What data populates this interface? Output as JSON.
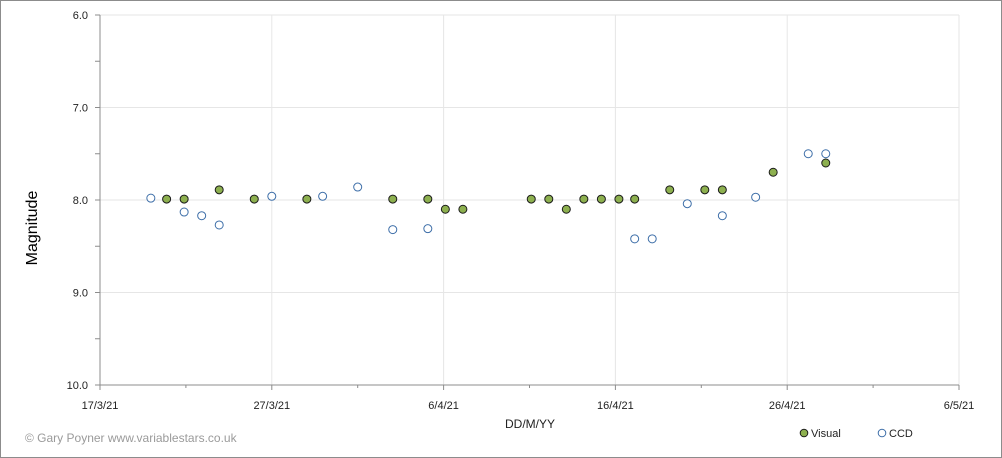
{
  "chart_data": {
    "type": "scatter",
    "title": "",
    "xlabel": "DD/M/YY",
    "ylabel": "Magnitude",
    "x_unit": "days since 17/3/21",
    "xlim": [
      0,
      49
    ],
    "ylim": [
      6.0,
      10.0
    ],
    "y_inverted": true,
    "grid": true,
    "legend_position": "bottom-right",
    "x_ticks": [
      {
        "day": 0,
        "label": "17/3/21"
      },
      {
        "day": 9.8,
        "label": "27/3/21"
      },
      {
        "day": 19.6,
        "label": "6/4/21"
      },
      {
        "day": 29.4,
        "label": "16/4/21"
      },
      {
        "day": 39.2,
        "label": "26/4/21"
      },
      {
        "day": 49,
        "label": "6/5/21"
      }
    ],
    "y_ticks": [
      {
        "value": 6.0,
        "label": "6.0"
      },
      {
        "value": 7.0,
        "label": "7.0"
      },
      {
        "value": 8.0,
        "label": "8.0"
      },
      {
        "value": 9.0,
        "label": "9.0"
      },
      {
        "value": 10.0,
        "label": "10.0"
      }
    ],
    "series": [
      {
        "name": "Visual",
        "fill": "#8db04f",
        "stroke": "#1a1a1a",
        "points": [
          {
            "x": 3.8,
            "y": 7.99
          },
          {
            "x": 4.8,
            "y": 7.99
          },
          {
            "x": 6.8,
            "y": 7.89
          },
          {
            "x": 8.8,
            "y": 7.99
          },
          {
            "x": 11.8,
            "y": 7.99
          },
          {
            "x": 16.7,
            "y": 7.99
          },
          {
            "x": 18.7,
            "y": 7.99
          },
          {
            "x": 19.7,
            "y": 8.1
          },
          {
            "x": 20.7,
            "y": 8.1
          },
          {
            "x": 24.6,
            "y": 7.99
          },
          {
            "x": 25.6,
            "y": 7.99
          },
          {
            "x": 26.6,
            "y": 8.1
          },
          {
            "x": 27.6,
            "y": 7.99
          },
          {
            "x": 28.6,
            "y": 7.99
          },
          {
            "x": 29.6,
            "y": 7.99
          },
          {
            "x": 30.5,
            "y": 7.99
          },
          {
            "x": 32.5,
            "y": 7.89
          },
          {
            "x": 34.5,
            "y": 7.89
          },
          {
            "x": 35.5,
            "y": 7.89
          },
          {
            "x": 38.4,
            "y": 7.7
          },
          {
            "x": 41.4,
            "y": 7.6
          }
        ]
      },
      {
        "name": "CCD",
        "fill": "#ffffff",
        "stroke": "#3d6ea8",
        "points": [
          {
            "x": 2.9,
            "y": 7.98
          },
          {
            "x": 4.8,
            "y": 8.13
          },
          {
            "x": 5.8,
            "y": 8.17
          },
          {
            "x": 6.8,
            "y": 8.27
          },
          {
            "x": 9.8,
            "y": 7.96
          },
          {
            "x": 12.7,
            "y": 7.96
          },
          {
            "x": 14.7,
            "y": 7.86
          },
          {
            "x": 16.7,
            "y": 8.32
          },
          {
            "x": 18.7,
            "y": 8.31
          },
          {
            "x": 30.5,
            "y": 8.42
          },
          {
            "x": 31.5,
            "y": 8.42
          },
          {
            "x": 33.5,
            "y": 8.04
          },
          {
            "x": 35.5,
            "y": 8.17
          },
          {
            "x": 37.4,
            "y": 7.97
          },
          {
            "x": 40.4,
            "y": 7.5
          },
          {
            "x": 41.4,
            "y": 7.5
          }
        ]
      }
    ]
  },
  "legend": {
    "items": [
      {
        "label": "Visual"
      },
      {
        "label": "CCD"
      }
    ]
  },
  "credit": "© Gary Poyner www.variablestars.co.uk"
}
